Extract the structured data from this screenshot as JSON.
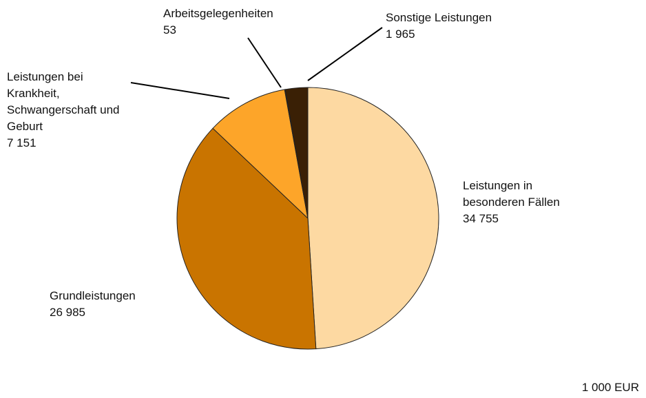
{
  "chart_data": {
    "type": "pie",
    "categories": [
      "Leistungen in\nbesonderen Fällen",
      "Grundleistungen",
      "Leistungen bei\nKrankheit,\nSchwangerschaft und\nGeburt",
      "Arbeitsgelegenheiten",
      "Sonstige Leistungen"
    ],
    "values": [
      34755,
      26985,
      7151,
      53,
      1965
    ],
    "value_labels": [
      "34 755",
      "26 985",
      "7 151",
      "53",
      "1 965"
    ],
    "colors": [
      "#fdd9a2",
      "#c97400",
      "#fda529",
      "#b06000",
      "#3a2005"
    ],
    "unit": "1 000 EUR"
  }
}
